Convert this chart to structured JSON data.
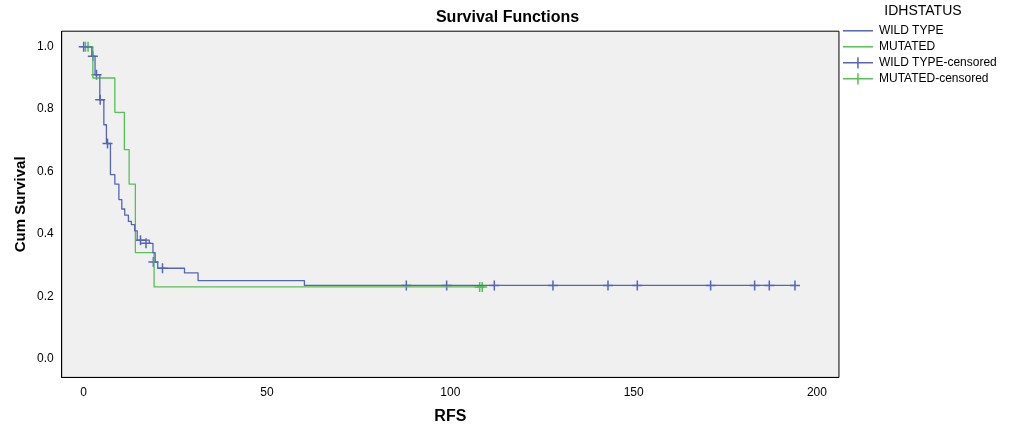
{
  "chart_data": {
    "type": "step",
    "title": "Survival Functions",
    "xlabel": "RFS",
    "ylabel": "Cum Survival",
    "legend_title": "IDHSTATUS",
    "legend": "top right",
    "grid": false,
    "xlim": [
      -6,
      206
    ],
    "xticks": [
      0,
      50,
      100,
      150,
      200
    ],
    "ylim": [
      -0.06,
      1.05
    ],
    "yticks": [
      {
        "value": 0,
        "label": "0.0"
      },
      0.2,
      0.4,
      0.6,
      0.8,
      {
        "value": 1,
        "label": "1.0"
      }
    ],
    "series": [
      {
        "name": "WILD TYPE",
        "color": "#5565b5",
        "marker": "none",
        "x": [
          0,
          2.2,
          3.1,
          4.4,
          5.5,
          6.2,
          7.3,
          8.5,
          9.6,
          10.4,
          11.2,
          12.2,
          13,
          13.9,
          14.6,
          17.9,
          18.9,
          19.5,
          20.2,
          27.5,
          31.2,
          60.2,
          194
        ],
        "values": [
          1,
          0.97,
          0.91,
          0.83,
          0.75,
          0.69,
          0.59,
          0.56,
          0.51,
          0.48,
          0.46,
          0.44,
          0.43,
          0.41,
          0.38,
          0.37,
          0.34,
          0.31,
          0.29,
          0.275,
          0.25,
          0.235,
          0.235
        ]
      },
      {
        "name": "MUTATED",
        "color": "#55c055",
        "marker": "none",
        "x": [
          0,
          2.5,
          8.5,
          11.1,
          12.4,
          14.1,
          19.2,
          109
        ],
        "values": [
          1,
          0.9,
          0.79,
          0.67,
          0.56,
          0.34,
          0.23,
          0.23
        ]
      },
      {
        "name": "WILD TYPE-censored",
        "color": "#5565b5",
        "type": "scatter",
        "marker": "cross",
        "x": [
          0,
          2.5,
          3.5,
          4.5,
          6.5,
          15.5,
          17,
          19,
          21.5,
          88,
          99,
          112,
          128,
          143,
          151,
          171,
          183,
          187,
          194
        ],
        "values": [
          1,
          0.97,
          0.91,
          0.83,
          0.69,
          0.38,
          0.37,
          0.31,
          0.29,
          0.235,
          0.235,
          0.235,
          0.235,
          0.235,
          0.235,
          0.235,
          0.235,
          0.235,
          0.235
        ]
      },
      {
        "name": "MUTATED-censored",
        "color": "#55c055",
        "type": "scatter",
        "marker": "cross",
        "x": [
          0.5,
          1.2,
          108,
          108.7
        ],
        "values": [
          1,
          1,
          0.23,
          0.23
        ]
      }
    ]
  }
}
